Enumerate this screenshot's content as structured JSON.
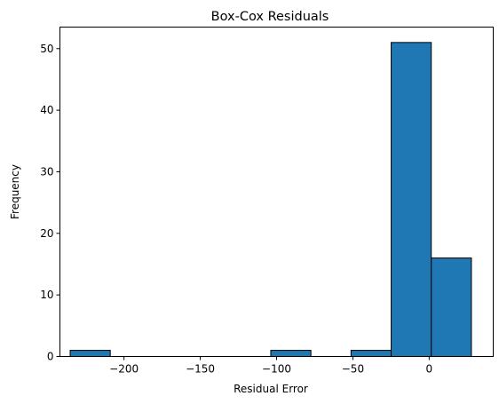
{
  "chart_data": {
    "type": "bar",
    "title": "Box-Cox Residuals",
    "xlabel": "Residual Error",
    "ylabel": "Frequency",
    "bar_color": "#1f77b4",
    "edge_color": "#000000",
    "grid": false,
    "xlim": [
      -242,
      42
    ],
    "ylim": [
      0,
      53.5
    ],
    "xticks": [
      -200,
      -150,
      -100,
      -50,
      0
    ],
    "xtick_labels": [
      "−200",
      "−150",
      "−100",
      "−50",
      "0"
    ],
    "yticks": [
      0,
      10,
      20,
      30,
      40,
      50
    ],
    "ytick_labels": [
      "0",
      "10",
      "20",
      "30",
      "40",
      "50"
    ],
    "bins": [
      {
        "x0": -235.3,
        "x1": -209.0,
        "count": 1
      },
      {
        "x0": -209.0,
        "x1": -182.7,
        "count": 0
      },
      {
        "x0": -182.7,
        "x1": -156.4,
        "count": 0
      },
      {
        "x0": -156.4,
        "x1": -130.1,
        "count": 0
      },
      {
        "x0": -130.1,
        "x1": -103.8,
        "count": 0
      },
      {
        "x0": -103.8,
        "x1": -77.5,
        "count": 1
      },
      {
        "x0": -77.5,
        "x1": -51.2,
        "count": 0
      },
      {
        "x0": -51.2,
        "x1": -24.9,
        "count": 1
      },
      {
        "x0": -24.9,
        "x1": 1.4,
        "count": 51
      },
      {
        "x0": 1.4,
        "x1": 27.7,
        "count": 16
      }
    ]
  }
}
